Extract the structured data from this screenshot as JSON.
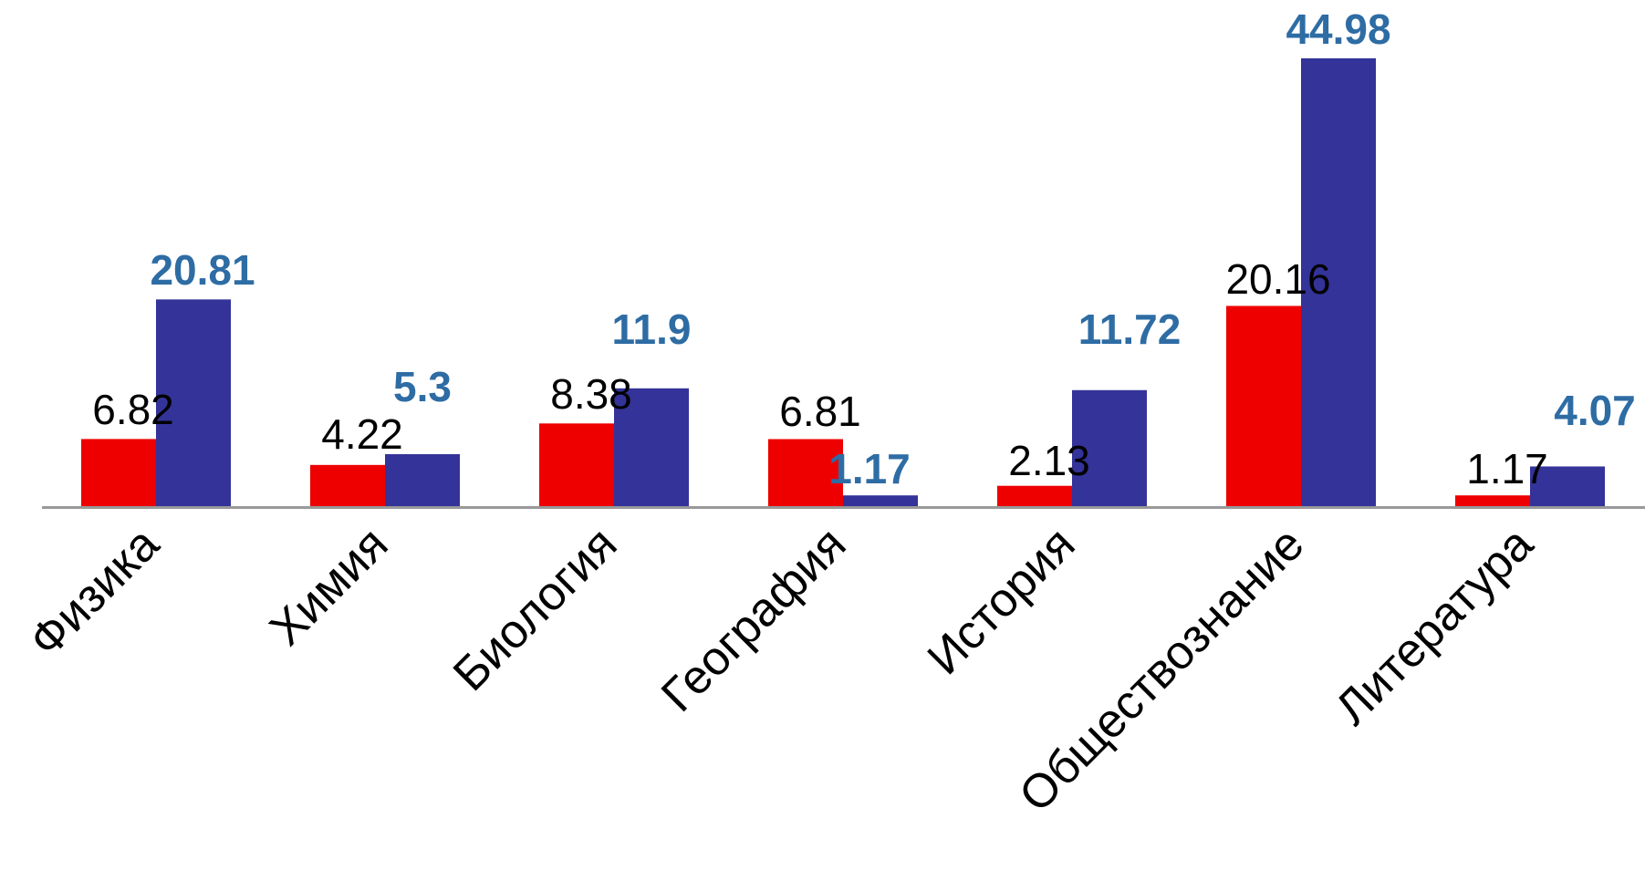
{
  "chart_data": {
    "type": "bar",
    "categories": [
      "Физика",
      "Химия",
      "Биология",
      "География",
      "История",
      "Обществознание",
      "Литература"
    ],
    "series": [
      {
        "color": "#ee0000",
        "values": [
          6.82,
          4.22,
          8.38,
          6.81,
          2.13,
          20.16,
          1.17
        ]
      },
      {
        "color": "#333399",
        "values": [
          20.81,
          5.3,
          11.9,
          1.17,
          11.72,
          44.98,
          4.07
        ]
      }
    ],
    "data_labels": {
      "series_0": [
        "6.82",
        "4.22",
        "8.38",
        "6.81",
        "2.13",
        "20.16",
        "1.17"
      ],
      "series_1": [
        "20.81",
        "5.3",
        "11.9",
        "1.17",
        "11.72",
        "44.98",
        "4.07"
      ]
    },
    "label_colors": {
      "series_0": "#000000",
      "series_1": "#2e6ca4"
    },
    "axis_color": "#999999",
    "title": "",
    "xlabel": "",
    "ylabel": "",
    "ylim": [
      0,
      45
    ],
    "grid": false,
    "legend": "none"
  }
}
